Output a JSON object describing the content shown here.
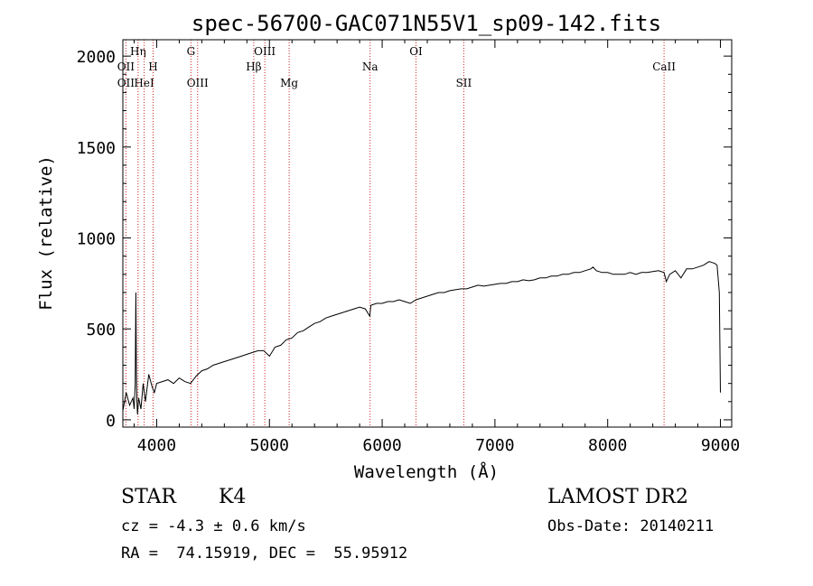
{
  "chart_data": {
    "type": "line",
    "title": "spec-56700-GAC071N55V1_sp09-142.fits",
    "xlabel": "Wavelength (Å)",
    "ylabel": "Flux (relative)",
    "xlim": [
      3700,
      9100
    ],
    "ylim": [
      -40,
      2090
    ],
    "xticks": [
      4000,
      5000,
      6000,
      7000,
      8000,
      9000
    ],
    "yticks": [
      0,
      500,
      1000,
      1500,
      2000
    ],
    "grid": false,
    "series": [
      {
        "x": [
          3700,
          3730,
          3760,
          3790,
          3800,
          3810,
          3815,
          3820,
          3825,
          3830,
          3840,
          3860,
          3880,
          3900,
          3930,
          3960,
          3980,
          4000,
          4050,
          4100,
          4150,
          4200,
          4250,
          4300,
          4350,
          4400,
          4450,
          4500,
          4550,
          4600,
          4650,
          4700,
          4750,
          4800,
          4850,
          4900,
          4950,
          5000,
          5050,
          5100,
          5150,
          5200,
          5250,
          5300,
          5350,
          5400,
          5450,
          5500,
          5550,
          5600,
          5650,
          5700,
          5750,
          5800,
          5850,
          5890,
          5900,
          5950,
          6000,
          6050,
          6100,
          6150,
          6200,
          6250,
          6300,
          6350,
          6400,
          6450,
          6500,
          6550,
          6600,
          6650,
          6700,
          6750,
          6800,
          6850,
          6900,
          6950,
          7000,
          7050,
          7100,
          7150,
          7200,
          7250,
          7300,
          7350,
          7400,
          7450,
          7500,
          7550,
          7600,
          7650,
          7700,
          7750,
          7800,
          7850,
          7870,
          7900,
          7950,
          8000,
          8050,
          8100,
          8150,
          8200,
          8250,
          8300,
          8350,
          8400,
          8450,
          8500,
          8520,
          8550,
          8600,
          8650,
          8700,
          8750,
          8800,
          8850,
          8900,
          8950,
          8970,
          8990,
          9000
        ],
        "y": [
          50,
          150,
          80,
          120,
          60,
          200,
          700,
          250,
          100,
          30,
          120,
          60,
          200,
          100,
          250,
          180,
          150,
          200,
          210,
          220,
          200,
          230,
          210,
          200,
          240,
          270,
          280,
          300,
          310,
          320,
          330,
          340,
          350,
          360,
          370,
          380,
          380,
          350,
          400,
          410,
          440,
          450,
          480,
          490,
          510,
          530,
          540,
          560,
          570,
          580,
          590,
          600,
          610,
          620,
          610,
          570,
          630,
          640,
          640,
          650,
          650,
          660,
          650,
          640,
          660,
          670,
          680,
          690,
          700,
          700,
          710,
          715,
          720,
          720,
          730,
          740,
          735,
          740,
          745,
          750,
          750,
          760,
          760,
          770,
          765,
          770,
          780,
          780,
          790,
          790,
          800,
          800,
          810,
          810,
          820,
          830,
          840,
          820,
          810,
          810,
          800,
          800,
          800,
          810,
          800,
          810,
          810,
          815,
          820,
          810,
          760,
          800,
          820,
          780,
          830,
          830,
          840,
          850,
          870,
          860,
          850,
          700,
          150
        ]
      }
    ],
    "annotations": [
      {
        "label": "OII",
        "x": 3727,
        "row": 2
      },
      {
        "label": "OII",
        "x": 3727,
        "row": 3
      },
      {
        "label": "Hη",
        "x": 3835,
        "row": 1
      },
      {
        "label": "HeI",
        "x": 3889,
        "row": 3
      },
      {
        "label": "H",
        "x": 3968,
        "row": 2
      },
      {
        "label": "G",
        "x": 4304,
        "row": 1
      },
      {
        "label": "OIII",
        "x": 4363,
        "row": 3
      },
      {
        "label": "OIII",
        "x": 4959,
        "row": 1
      },
      {
        "label": "Hβ",
        "x": 4861,
        "row": 2
      },
      {
        "label": "Mg",
        "x": 5175,
        "row": 3
      },
      {
        "label": "Na",
        "x": 5893,
        "row": 2
      },
      {
        "label": "OI",
        "x": 6300,
        "row": 1
      },
      {
        "label": "SII",
        "x": 6724,
        "row": 3
      },
      {
        "label": "CaII",
        "x": 8500,
        "row": 2
      }
    ],
    "line_color": "#000000",
    "marker_color": "#cc2222"
  },
  "info": {
    "class_label": "STAR",
    "subclass": "K4",
    "survey": "LAMOST DR2",
    "cz_text": "cz = -4.3 ± 0.6 km/s",
    "obs_date": "Obs-Date: 20140211",
    "coords": "RA =  74.15919, DEC =  55.95912"
  }
}
